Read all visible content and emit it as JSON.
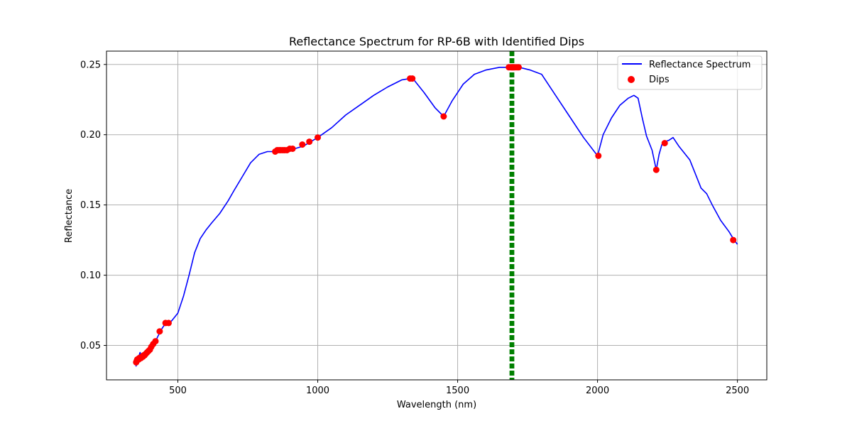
{
  "chart_data": {
    "type": "line",
    "title": "Reflectance Spectrum for RP-6B with Identified Dips",
    "xlabel": "Wavelength (nm)",
    "ylabel": "Reflectance",
    "xlim": [
      245,
      2605
    ],
    "ylim": [
      0.0255,
      0.2595
    ],
    "xticks": [
      500,
      1000,
      1500,
      2000,
      2500
    ],
    "xtick_labels": [
      "500",
      "1000",
      "1500",
      "2000",
      "2500"
    ],
    "yticks": [
      0.05,
      0.1,
      0.15,
      0.2,
      0.25
    ],
    "ytick_labels": [
      "0.05",
      "0.10",
      "0.15",
      "0.20",
      "0.25"
    ],
    "grid": true,
    "legend_position": "upper-right",
    "colors": {
      "spectrum": "#0000ff",
      "dips": "#ff0000",
      "vlines": "#008000"
    },
    "series": [
      {
        "name": "Reflectance Spectrum",
        "kind": "line",
        "x": [
          350,
          355,
          360,
          365,
          370,
          380,
          390,
          400,
          410,
          420,
          430,
          440,
          450,
          460,
          470,
          480,
          500,
          520,
          540,
          560,
          580,
          600,
          620,
          650,
          680,
          700,
          730,
          760,
          790,
          820,
          850,
          900,
          950,
          1000,
          1050,
          1100,
          1150,
          1200,
          1250,
          1300,
          1330,
          1340,
          1380,
          1420,
          1450,
          1480,
          1520,
          1560,
          1600,
          1650,
          1680,
          1700,
          1720,
          1760,
          1800,
          1850,
          1900,
          1950,
          2000,
          2020,
          2050,
          2080,
          2110,
          2130,
          2145,
          2160,
          2175,
          2195,
          2210,
          2220,
          2230,
          2240,
          2255,
          2270,
          2290,
          2310,
          2330,
          2350,
          2370,
          2390,
          2410,
          2440,
          2470,
          2485,
          2500
        ],
        "y": [
          0.035,
          0.038,
          0.042,
          0.045,
          0.042,
          0.044,
          0.046,
          0.048,
          0.05,
          0.053,
          0.057,
          0.061,
          0.064,
          0.066,
          0.066,
          0.068,
          0.073,
          0.085,
          0.1,
          0.116,
          0.126,
          0.132,
          0.137,
          0.144,
          0.153,
          0.16,
          0.17,
          0.18,
          0.186,
          0.188,
          0.188,
          0.189,
          0.192,
          0.198,
          0.205,
          0.214,
          0.221,
          0.228,
          0.234,
          0.239,
          0.24,
          0.24,
          0.23,
          0.219,
          0.213,
          0.224,
          0.236,
          0.243,
          0.246,
          0.248,
          0.248,
          0.248,
          0.248,
          0.246,
          0.243,
          0.228,
          0.213,
          0.198,
          0.185,
          0.2,
          0.212,
          0.221,
          0.226,
          0.228,
          0.226,
          0.212,
          0.199,
          0.189,
          0.175,
          0.186,
          0.193,
          0.195,
          0.196,
          0.198,
          0.192,
          0.187,
          0.182,
          0.172,
          0.162,
          0.158,
          0.15,
          0.139,
          0.131,
          0.126,
          0.122
        ]
      },
      {
        "name": "Dips",
        "kind": "scatter",
        "x": [
          351,
          353,
          355,
          357,
          360,
          362,
          365,
          368,
          371,
          375,
          378,
          381,
          385,
          390,
          395,
          400,
          405,
          412,
          420,
          435,
          456,
          467,
          848,
          855,
          862,
          868,
          875,
          882,
          890,
          900,
          910,
          945,
          970,
          1000,
          1330,
          1338,
          1450,
          1683,
          1690,
          1694,
          1697,
          1700,
          1705,
          1712,
          1718,
          2003,
          2210,
          2240,
          2485
        ],
        "y": [
          0.038,
          0.039,
          0.04,
          0.04,
          0.04,
          0.041,
          0.041,
          0.041,
          0.042,
          0.042,
          0.043,
          0.043,
          0.044,
          0.045,
          0.046,
          0.047,
          0.049,
          0.051,
          0.053,
          0.06,
          0.066,
          0.066,
          0.188,
          0.189,
          0.189,
          0.189,
          0.189,
          0.189,
          0.189,
          0.19,
          0.19,
          0.193,
          0.195,
          0.198,
          0.24,
          0.24,
          0.213,
          0.248,
          0.248,
          0.248,
          0.248,
          0.248,
          0.248,
          0.248,
          0.248,
          0.185,
          0.175,
          0.194,
          0.125
        ]
      }
    ],
    "vlines": [
      1688,
      1691,
      1694,
      1697,
      1700
    ]
  }
}
